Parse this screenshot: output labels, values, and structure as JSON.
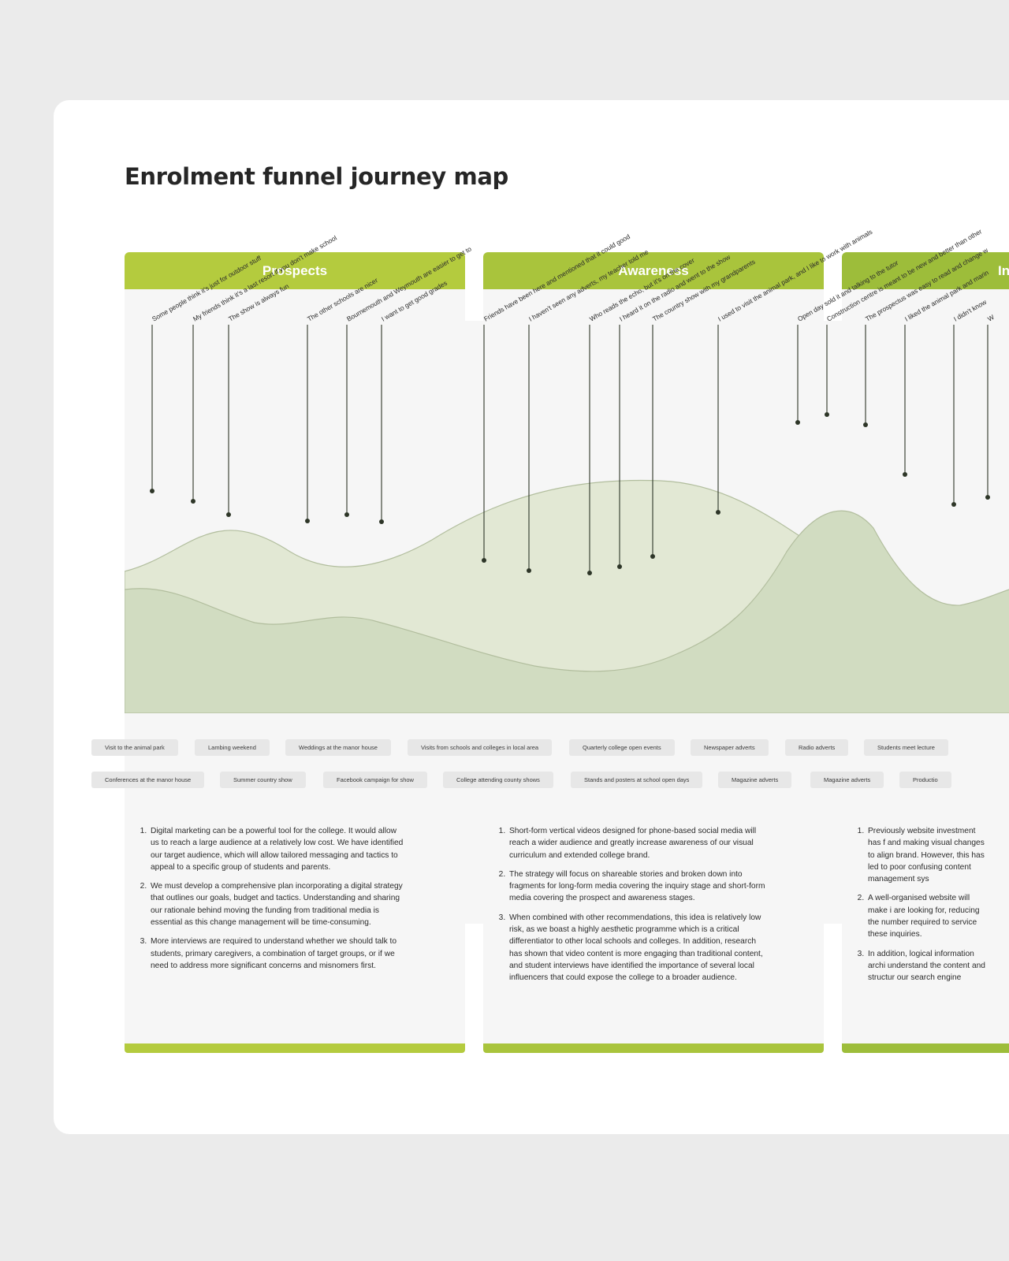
{
  "title": "Enrolment funnel journey map",
  "stages": [
    {
      "label": "Prospects",
      "color": "#b4cb3e"
    },
    {
      "label": "Awareness",
      "color": "#a9c43c"
    },
    {
      "label": "Inqu",
      "color": "#9dbd3a"
    }
  ],
  "quotes": [
    "Some people think it's just for outdoor stuff",
    "My friends think it's a last resort if you don't make school",
    "The show is always fun",
    "The other schools are nicer",
    "Bournemouth and Weymouth are easier to get to",
    "I want to get good grades",
    "Friends have been here and mentioned that it could good",
    "I haven't seen any adverts, my teacher told me",
    "Who reads the echo, but it's on the cover",
    "I heard it on the radio and went to the show",
    "The country show with my grandparents",
    "I used to visit the animal park, and I like to work with animals",
    "Open day sold it and talking to the tutor",
    "Construction centre is meant to be new and better than other",
    "The prospectus was easy to read and change w",
    "I liked the animal park and marin",
    "I didn't know",
    "W"
  ],
  "chips_row1": [
    "Visit to the animal park",
    "Lambing weekend",
    "Weddings at the manor house",
    "Visits from schools and colleges in local area",
    "Quarterly college open events",
    "Newspaper adverts",
    "Radio adverts",
    "Students meet lecture"
  ],
  "chips_row2": [
    "Conferences at the manor house",
    "Summer country show",
    "Facebook campaign for show",
    "College attending county shows",
    "Stands and posters at school open days",
    "Magazine adverts",
    "Magazine adverts",
    "Productio"
  ],
  "notes": {
    "prospects": [
      "Digital marketing can be a powerful tool for the college. It would allow us to reach a large audience at a relatively low cost. We have identified our target audience, which will allow tailored messaging and tactics to appeal to a specific group of students and parents.",
      "We must develop a comprehensive plan incorporating a digital strategy that outlines our goals, budget and tactics. Understanding and sharing our rationale behind moving the funding from traditional media is essential as this change management will be time-consuming.",
      "More interviews are required to understand whether we should talk to students, primary caregivers, a combination of target groups, or if we need to address more significant concerns and misnomers first."
    ],
    "awareness": [
      "Short-form vertical videos designed for phone-based social media will reach a wider audience and greatly increase awareness of our visual curriculum and extended college brand.",
      "The strategy will focus on shareable stories and broken down into fragments for long-form media covering the inquiry stage and short-form media covering the prospect and awareness stages.",
      " When combined with other recommendations, this idea is relatively low risk, as we boast a highly aesthetic programme which is a critical differentiator to other local schools and colleges. In addition, research has shown that video content is more engaging than traditional content, and student interviews have identified the importance of several local influencers that could expose the college to a broader audience."
    ],
    "inquiry": [
      "Previously website investment has f and making visual changes to align brand. However, this has led to poor confusing content management sys",
      "A well-organised website will make i are looking for, reducing the number required to service these inquiries.",
      "In addition, logical information archi understand the content and structur our search engine rankings and help future growth to scale the site as it g"
    ]
  },
  "colors": {
    "line_fill_light": "#e2e8d4",
    "line_fill_dark": "#d1dcc1",
    "curve_stroke": "#b2be9e",
    "pin": "#2e3628"
  }
}
